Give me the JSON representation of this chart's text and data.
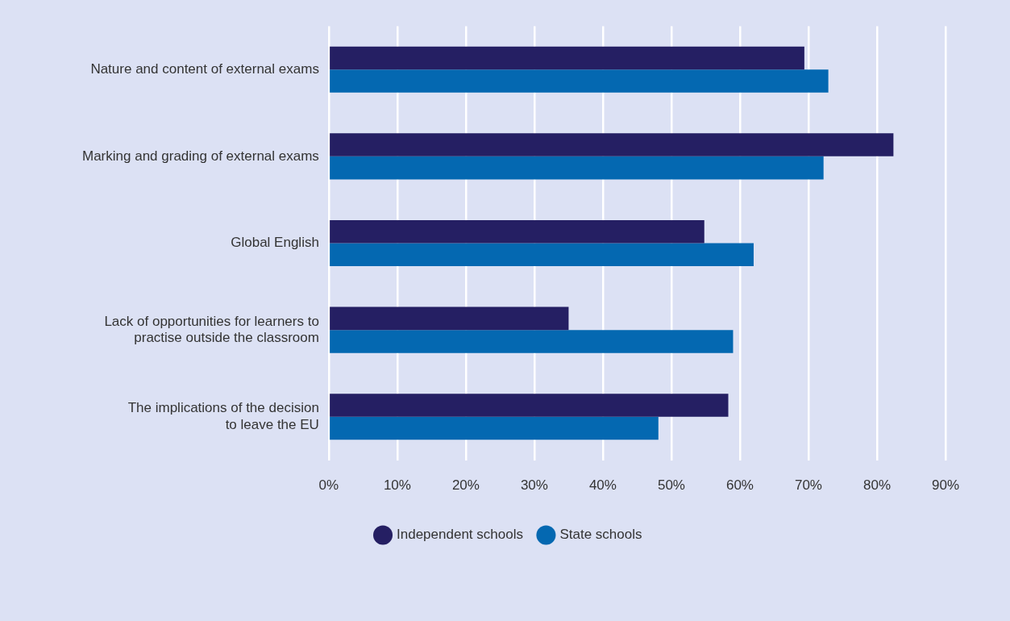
{
  "chart_data": {
    "type": "bar",
    "orientation": "horizontal",
    "categories": [
      "Nature and content of external exams",
      "Marking and grading of external exams",
      "Global English",
      "Lack of opportunities for learners to\npractise outside the classroom",
      "The implications of the decision\nto leave the EU"
    ],
    "series": [
      {
        "name": "Independent schools",
        "color": "#251f63",
        "values": [
          69.4,
          82.4,
          54.8,
          35,
          58.3
        ]
      },
      {
        "name": "State schools",
        "color": "#0468b1",
        "values": [
          72.9,
          72.2,
          62,
          59,
          48.1
        ]
      }
    ],
    "xlim": [
      0,
      90
    ],
    "xticks": [
      {
        "value": 0,
        "label": "0%"
      },
      {
        "value": 10,
        "label": "10%"
      },
      {
        "value": 20,
        "label": "20%"
      },
      {
        "value": 30,
        "label": "30%"
      },
      {
        "value": 40,
        "label": "40%"
      },
      {
        "value": 50,
        "label": "50%"
      },
      {
        "value": 60,
        "label": "60%"
      },
      {
        "value": 70,
        "label": "70%"
      },
      {
        "value": 80,
        "label": "80%"
      },
      {
        "value": 90,
        "label": "90%"
      }
    ],
    "grid": "x",
    "legend": "bottom"
  }
}
